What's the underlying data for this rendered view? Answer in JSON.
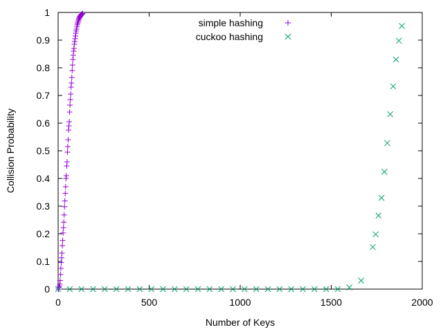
{
  "chart_data": {
    "type": "scatter",
    "title": "",
    "xlabel": "Number of Keys",
    "ylabel": "Collision Probability",
    "xlim": [
      0,
      2000
    ],
    "ylim": [
      0,
      1
    ],
    "x_ticks": [
      "0",
      "500",
      "1000",
      "1500",
      "2000"
    ],
    "y_ticks": [
      "0",
      "0.1",
      "0.2",
      "0.3",
      "0.4",
      "0.5",
      "0.6",
      "0.7",
      "0.8",
      "0.9",
      "1"
    ],
    "grid": false,
    "legend_position": "top-right",
    "series": [
      {
        "name": "simple hashing",
        "marker": "plus",
        "color": "#9400d3",
        "x": [
          1,
          3,
          5,
          7,
          9,
          11,
          13,
          15,
          17,
          19,
          21,
          23,
          25,
          27,
          29,
          31,
          33,
          35,
          37,
          39,
          41,
          43,
          45,
          47,
          49,
          51,
          53,
          55,
          57,
          59,
          61,
          63,
          65,
          67,
          69,
          71,
          73,
          75,
          77,
          79,
          81,
          83,
          85,
          87,
          89,
          91,
          93,
          95,
          97,
          99,
          101,
          103,
          105,
          107,
          109,
          111,
          113,
          115,
          117,
          119,
          121,
          123,
          125,
          127,
          129,
          131,
          133,
          135
        ],
        "y": [
          0.0,
          0.0,
          0.006,
          0.011,
          0.018,
          0.031,
          0.053,
          0.075,
          0.096,
          0.113,
          0.13,
          0.157,
          0.176,
          0.203,
          0.222,
          0.242,
          0.268,
          0.298,
          0.319,
          0.346,
          0.37,
          0.4,
          0.41,
          0.445,
          0.46,
          0.495,
          0.515,
          0.54,
          0.575,
          0.59,
          0.605,
          0.64,
          0.665,
          0.685,
          0.705,
          0.73,
          0.745,
          0.765,
          0.79,
          0.81,
          0.83,
          0.845,
          0.86,
          0.87,
          0.885,
          0.895,
          0.905,
          0.915,
          0.925,
          0.933,
          0.94,
          0.948,
          0.955,
          0.96,
          0.965,
          0.97,
          0.974,
          0.978,
          0.981,
          0.984,
          0.986,
          0.988,
          0.99,
          0.992,
          0.993,
          0.994,
          0.995,
          0.996
        ]
      },
      {
        "name": "cuckoo hashing",
        "marker": "cross",
        "color": "#009e73",
        "x": [
          0,
          64,
          128,
          192,
          256,
          320,
          384,
          448,
          512,
          576,
          640,
          704,
          768,
          832,
          896,
          960,
          1024,
          1088,
          1152,
          1216,
          1280,
          1344,
          1408,
          1472,
          1536,
          1600,
          1664,
          1728,
          1744,
          1760,
          1776,
          1792,
          1808,
          1824,
          1840,
          1856,
          1872,
          1888
        ],
        "y": [
          0,
          0,
          0,
          0,
          0,
          0,
          0,
          0,
          0,
          0,
          0,
          0,
          0,
          0,
          0,
          0,
          0,
          0,
          0,
          0,
          0,
          0,
          0,
          0,
          0,
          0.006,
          0.031,
          0.152,
          0.198,
          0.266,
          0.33,
          0.424,
          0.528,
          0.632,
          0.733,
          0.83,
          0.898,
          0.951
        ]
      }
    ]
  }
}
